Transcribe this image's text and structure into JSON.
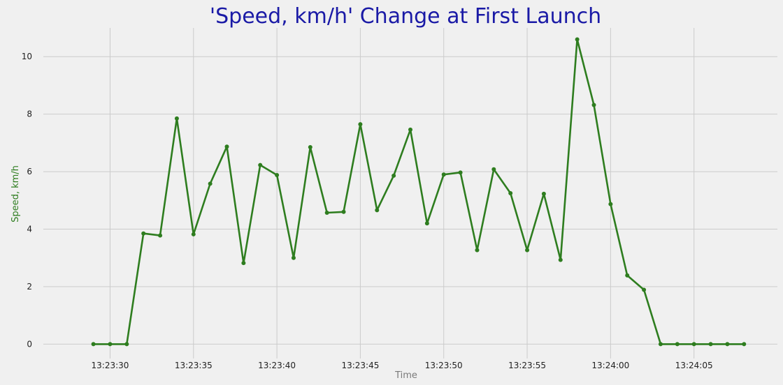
{
  "chart_data": {
    "type": "line",
    "title": "'Speed, km/h' Change at First Launch",
    "xlabel": "Time",
    "ylabel": "Speed, km/h",
    "x_start": "13:23:29",
    "x_step_seconds": 1,
    "x_tick_labels": [
      "13:23:30",
      "13:23:35",
      "13:23:40",
      "13:23:45",
      "13:23:50",
      "13:23:55",
      "13:24:00",
      "13:24:05"
    ],
    "y_ticks": [
      0,
      2,
      4,
      6,
      8,
      10
    ],
    "xlim": [
      "13:23:26",
      "13:24:10"
    ],
    "ylim": [
      -0.5,
      11.0
    ],
    "grid": true,
    "colors": {
      "line": "#2e7d1f",
      "background": "#f0f0f0",
      "title": "#1a1aa6",
      "ylabel": "#2e7d1f",
      "xlabel": "#7a7a7a"
    },
    "series": [
      {
        "values": [
          0,
          0,
          0,
          3.85,
          3.78,
          7.85,
          3.82,
          5.58,
          6.87,
          2.82,
          6.23,
          5.88,
          3.0,
          6.85,
          4.57,
          4.6,
          7.65,
          4.66,
          5.86,
          7.46,
          4.2,
          5.9,
          5.97,
          3.27,
          6.08,
          5.25,
          3.27,
          5.23,
          2.93,
          10.6,
          8.32,
          4.87,
          2.39,
          1.89,
          0,
          0,
          0,
          0,
          0,
          0
        ]
      }
    ]
  }
}
